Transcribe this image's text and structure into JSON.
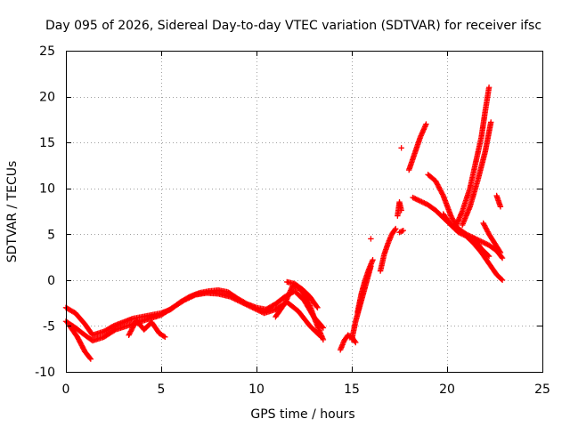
{
  "colors": {
    "series": "#ff0000",
    "grid": "#a0a0a0",
    "axis": "#000000",
    "background": "#ffffff"
  },
  "chart_data": {
    "type": "scatter",
    "title": "Day 095 of 2026, Sidereal Day-to-day VTEC variation (SDTVAR) for receiver ifsc",
    "xlabel": "GPS time / hours",
    "ylabel": "SDTVAR / TECUs",
    "xlim": [
      0,
      25
    ],
    "ylim": [
      -10,
      25
    ],
    "xticks": [
      0,
      5,
      10,
      15,
      20,
      25
    ],
    "yticks": [
      -10,
      -5,
      0,
      5,
      10,
      15,
      20,
      25
    ],
    "grid": true,
    "marker": "plus",
    "series": [
      {
        "name": "SDTVAR",
        "tracks": [
          {
            "x": [
              0,
              0.5,
              1.0,
              1.4,
              2.0,
              2.5,
              3.0,
              3.5,
              4.0,
              4.5,
              5.0,
              5.5,
              6.0,
              6.5,
              7.0,
              7.5,
              8.0,
              8.5,
              9.0,
              9.5,
              10.0,
              10.5,
              11.0,
              11.5,
              12.0,
              12.5,
              13.0,
              13.5
            ],
            "y": [
              -3.0,
              -3.6,
              -4.8,
              -6.0,
              -5.6,
              -5.0,
              -4.6,
              -4.2,
              -4.0,
              -3.8,
              -3.6,
              -3.2,
              -2.4,
              -1.8,
              -1.4,
              -1.2,
              -1.1,
              -1.3,
              -2.0,
              -2.6,
              -3.0,
              -3.2,
              -2.6,
              -1.8,
              -1.2,
              -2.2,
              -4.0,
              -5.2
            ]
          },
          {
            "x": [
              0,
              0.5,
              1.0,
              1.4,
              2.0,
              2.6,
              3.2,
              3.8,
              4.4,
              5.0,
              5.6,
              6.2,
              6.8,
              7.4,
              8.0,
              8.6,
              9.2,
              9.8,
              10.4,
              11.0,
              11.6,
              12.2,
              12.8,
              13.4
            ],
            "y": [
              -4.5,
              -5.2,
              -6.0,
              -6.6,
              -6.2,
              -5.4,
              -5.0,
              -4.6,
              -4.2,
              -3.8,
              -3.0,
              -2.2,
              -1.6,
              -1.4,
              -1.5,
              -1.8,
              -2.4,
              -3.0,
              -3.6,
              -3.2,
              -2.4,
              -3.4,
              -5.0,
              -6.2
            ]
          },
          {
            "x": [
              0.2,
              0.6,
              1.0,
              1.3
            ],
            "y": [
              -5.0,
              -6.2,
              -7.8,
              -8.6
            ]
          },
          {
            "x": [
              3.3,
              3.7,
              4.1,
              4.5,
              4.9,
              5.2
            ],
            "y": [
              -6.0,
              -4.4,
              -5.4,
              -4.6,
              -5.8,
              -6.2
            ]
          },
          {
            "x": [
              11.0,
              11.5,
              11.9,
              12.3,
              12.7,
              13.1,
              13.5
            ],
            "y": [
              -4.0,
              -2.5,
              -0.6,
              -1.0,
              -2.2,
              -4.5,
              -6.5
            ]
          },
          {
            "x": [
              11.6,
              12.0,
              12.4,
              12.8,
              13.2
            ],
            "y": [
              -0.2,
              -0.4,
              -1.0,
              -1.8,
              -3.0
            ]
          },
          {
            "x": [
              14.4,
              14.6,
              14.8,
              15.0,
              15.2
            ],
            "y": [
              -7.6,
              -6.6,
              -6.0,
              -6.2,
              -6.8
            ]
          },
          {
            "x": [
              15.0,
              15.2,
              15.4,
              15.6,
              15.8,
              16.0
            ],
            "y": [
              -6.5,
              -4.5,
              -3.0,
              -1.5,
              0.0,
              1.5
            ]
          },
          {
            "x": [
              15.3,
              15.5,
              15.7,
              15.9,
              16.1
            ],
            "y": [
              -3.5,
              -1.5,
              0.0,
              1.2,
              2.2
            ]
          },
          {
            "x": [
              16.5,
              16.7,
              16.9,
              17.1,
              17.3
            ],
            "y": [
              1.0,
              2.8,
              4.0,
              5.0,
              5.6
            ]
          },
          {
            "x": [
              16.0
            ],
            "y": [
              4.5
            ]
          },
          {
            "x": [
              17.4,
              17.5,
              17.6
            ],
            "y": [
              7.0,
              8.5,
              7.6
            ]
          },
          {
            "x": [
              17.5,
              17.7
            ],
            "y": [
              5.2,
              5.4
            ]
          },
          {
            "x": [
              17.6
            ],
            "y": [
              14.4
            ]
          },
          {
            "x": [
              18.0,
              18.3,
              18.6,
              18.9
            ],
            "y": [
              12.0,
              13.8,
              15.6,
              17.0
            ]
          },
          {
            "x": [
              18.2,
              18.6,
              19.0,
              19.4,
              19.8,
              20.2,
              20.6,
              21.0
            ],
            "y": [
              9.0,
              8.6,
              8.2,
              7.6,
              6.8,
              6.0,
              5.6,
              5.0
            ]
          },
          {
            "x": [
              19.0,
              19.4,
              19.8,
              20.2,
              20.6,
              21.0,
              21.4,
              21.8,
              22.2
            ],
            "y": [
              11.5,
              10.8,
              9.2,
              7.0,
              5.4,
              5.0,
              4.6,
              3.4,
              2.6
            ]
          },
          {
            "x": [
              19.8,
              20.2,
              20.6,
              21.0,
              21.4,
              21.8,
              22.2,
              22.6,
              22.9
            ],
            "y": [
              7.2,
              6.0,
              5.2,
              4.8,
              4.0,
              3.0,
              1.8,
              0.6,
              0.0
            ]
          },
          {
            "x": [
              20.4,
              20.8,
              21.2,
              21.5,
              21.8,
              22.0,
              22.2
            ],
            "y": [
              5.6,
              7.5,
              10.0,
              12.8,
              15.6,
              18.4,
              21.0
            ]
          },
          {
            "x": [
              20.8,
              21.2,
              21.6,
              22.0,
              22.3
            ],
            "y": [
              6.0,
              8.0,
              10.8,
              14.0,
              17.2
            ]
          },
          {
            "x": [
              21.4,
              21.8,
              22.2,
              22.6,
              22.9
            ],
            "y": [
              4.6,
              4.2,
              3.8,
              3.2,
              2.4
            ]
          },
          {
            "x": [
              21.9,
              22.2,
              22.5,
              22.8
            ],
            "y": [
              6.2,
              5.0,
              4.0,
              3.0
            ]
          },
          {
            "x": [
              22.6,
              22.8
            ],
            "y": [
              9.2,
              8.0
            ]
          }
        ]
      }
    ]
  }
}
